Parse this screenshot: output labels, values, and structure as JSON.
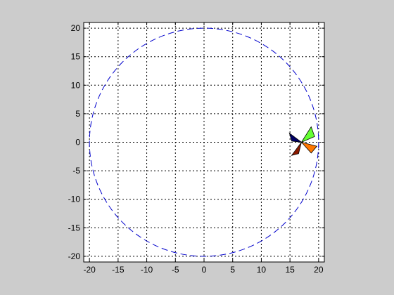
{
  "window": {
    "background": "#cccccc"
  },
  "chart_data": {
    "type": "line",
    "title": "",
    "xlabel": "",
    "ylabel": "",
    "xlim": [
      -21,
      21
    ],
    "ylim": [
      -21,
      21
    ],
    "xticks": [
      -20,
      -15,
      -10,
      -5,
      0,
      5,
      10,
      15,
      20
    ],
    "yticks": [
      -20,
      -15,
      -10,
      -5,
      0,
      5,
      10,
      15,
      20
    ],
    "x_tick_labels": [
      "-20",
      "-15",
      "-10",
      "-5",
      "0",
      "5",
      "10",
      "15",
      "20"
    ],
    "y_tick_labels": [
      "-20",
      "-15",
      "-10",
      "-5",
      "0",
      "5",
      "10",
      "15",
      "20"
    ],
    "grid": true,
    "grid_style": "dotted",
    "axes_background": "#ffffff",
    "series": [
      {
        "kind": "circle",
        "center": [
          0,
          0
        ],
        "radius": 20,
        "line_style": "dashed",
        "color": "#0000cc"
      }
    ],
    "windmill": {
      "center": [
        17,
        0
      ],
      "blades": [
        {
          "color": "#66ff33",
          "points": [
            [
              17,
              0
            ],
            [
              18.7,
              2.7
            ],
            [
              19.3,
              1.0
            ]
          ]
        },
        {
          "color": "#ff7700",
          "points": [
            [
              17,
              0
            ],
            [
              19.7,
              -0.7
            ],
            [
              18.7,
              -1.9
            ]
          ]
        },
        {
          "color": "#8b1a00",
          "points": [
            [
              17,
              0
            ],
            [
              15.3,
              -2.3
            ],
            [
              16.5,
              -2.0
            ]
          ]
        },
        {
          "color": "#000066",
          "points": [
            [
              17,
              0
            ],
            [
              14.9,
              1.6
            ],
            [
              15.3,
              0.2
            ]
          ]
        }
      ]
    }
  }
}
